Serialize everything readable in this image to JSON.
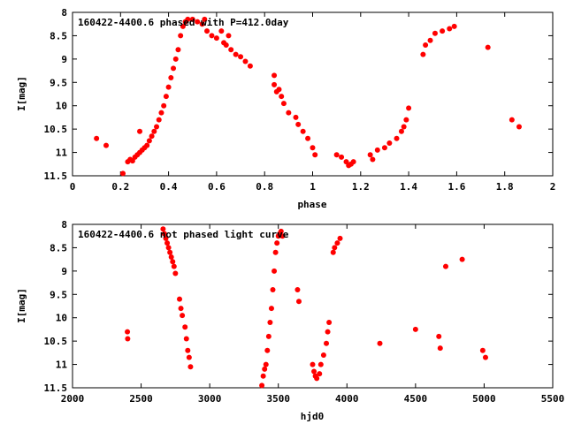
{
  "chart_data": [
    {
      "type": "scatter",
      "title": "160422-4400.6 phased with P=412.0day",
      "xlabel": "phase",
      "ylabel": "I[mag]",
      "xlim": [
        0,
        2
      ],
      "ylim": [
        11.5,
        8
      ],
      "y_inverted": true,
      "grid": false,
      "legend": "none",
      "xticks": [
        0,
        0.2,
        0.4,
        0.6,
        0.8,
        1,
        1.2,
        1.4,
        1.6,
        1.8,
        2
      ],
      "yticks": [
        8,
        8.5,
        9,
        9.5,
        10,
        10.5,
        11,
        11.5
      ],
      "xtick_labels": [
        "0",
        "0.2",
        "0.4",
        "0.6",
        "0.8",
        "1",
        "1.2",
        "1.4",
        "1.6",
        "1.8",
        "2"
      ],
      "ytick_labels": [
        "8",
        "8.5",
        "9",
        "9.5",
        "10",
        "10.5",
        "11",
        "11.5"
      ],
      "marker_color": "#ff0000",
      "series": [
        {
          "points": [
            [
              0.1,
              10.7
            ],
            [
              0.14,
              10.85
            ],
            [
              0.21,
              11.45
            ],
            [
              0.23,
              11.2
            ],
            [
              0.24,
              11.15
            ],
            [
              0.25,
              11.18
            ],
            [
              0.26,
              11.1
            ],
            [
              0.27,
              11.05
            ],
            [
              0.28,
              11.0
            ],
            [
              0.29,
              10.95
            ],
            [
              0.3,
              10.9
            ],
            [
              0.31,
              10.85
            ],
            [
              0.28,
              10.55
            ],
            [
              0.32,
              10.75
            ],
            [
              0.33,
              10.65
            ],
            [
              0.34,
              10.55
            ],
            [
              0.35,
              10.45
            ],
            [
              0.36,
              10.3
            ],
            [
              0.37,
              10.15
            ],
            [
              0.38,
              10.0
            ],
            [
              0.39,
              9.8
            ],
            [
              0.4,
              9.6
            ],
            [
              0.41,
              9.4
            ],
            [
              0.42,
              9.2
            ],
            [
              0.43,
              9.0
            ],
            [
              0.44,
              8.8
            ],
            [
              0.45,
              8.5
            ],
            [
              0.46,
              8.3
            ],
            [
              0.47,
              8.2
            ],
            [
              0.48,
              8.15
            ],
            [
              0.5,
              8.15
            ],
            [
              0.52,
              8.2
            ],
            [
              0.54,
              8.25
            ],
            [
              0.55,
              8.15
            ],
            [
              0.56,
              8.4
            ],
            [
              0.58,
              8.5
            ],
            [
              0.6,
              8.55
            ],
            [
              0.62,
              8.4
            ],
            [
              0.63,
              8.65
            ],
            [
              0.64,
              8.7
            ],
            [
              0.65,
              8.5
            ],
            [
              0.66,
              8.8
            ],
            [
              0.68,
              8.9
            ],
            [
              0.7,
              8.95
            ],
            [
              0.72,
              9.05
            ],
            [
              0.74,
              9.15
            ],
            [
              0.84,
              9.35
            ],
            [
              0.84,
              9.55
            ],
            [
              0.85,
              9.7
            ],
            [
              0.86,
              9.65
            ],
            [
              0.87,
              9.8
            ],
            [
              0.88,
              9.95
            ],
            [
              0.9,
              10.15
            ],
            [
              0.93,
              10.25
            ],
            [
              0.94,
              10.4
            ],
            [
              0.96,
              10.55
            ],
            [
              0.98,
              10.7
            ],
            [
              1.0,
              10.9
            ],
            [
              1.01,
              11.05
            ],
            [
              1.1,
              11.05
            ],
            [
              1.12,
              11.1
            ],
            [
              1.14,
              11.2
            ],
            [
              1.15,
              11.28
            ],
            [
              1.16,
              11.25
            ],
            [
              1.17,
              11.2
            ],
            [
              1.24,
              11.05
            ],
            [
              1.25,
              11.15
            ],
            [
              1.27,
              10.95
            ],
            [
              1.3,
              10.9
            ],
            [
              1.32,
              10.8
            ],
            [
              1.35,
              10.7
            ],
            [
              1.37,
              10.55
            ],
            [
              1.38,
              10.45
            ],
            [
              1.39,
              10.3
            ],
            [
              1.4,
              10.05
            ],
            [
              1.46,
              8.9
            ],
            [
              1.47,
              8.7
            ],
            [
              1.49,
              8.6
            ],
            [
              1.51,
              8.45
            ],
            [
              1.54,
              8.4
            ],
            [
              1.57,
              8.35
            ],
            [
              1.59,
              8.3
            ],
            [
              1.73,
              8.75
            ],
            [
              1.83,
              10.3
            ],
            [
              1.86,
              10.45
            ]
          ]
        }
      ]
    },
    {
      "type": "scatter",
      "title": "160422-4400.6 not phased light curve",
      "xlabel": "hjd0",
      "ylabel": "I[mag]",
      "xlim": [
        2000,
        5500
      ],
      "ylim": [
        11.5,
        8
      ],
      "y_inverted": true,
      "grid": false,
      "legend": "none",
      "xticks": [
        2000,
        2500,
        3000,
        3500,
        4000,
        4500,
        5000,
        5500
      ],
      "yticks": [
        8,
        8.5,
        9,
        9.5,
        10,
        10.5,
        11,
        11.5
      ],
      "xtick_labels": [
        "2000",
        "2500",
        "3000",
        "3500",
        "4000",
        "4500",
        "5000",
        "5500"
      ],
      "ytick_labels": [
        "8",
        "8.5",
        "9",
        "9.5",
        "10",
        "10.5",
        "11",
        "11.5"
      ],
      "marker_color": "#ff0000",
      "series": [
        {
          "points": [
            [
              2400,
              10.3
            ],
            [
              2402,
              10.45
            ],
            [
              2660,
              8.1
            ],
            [
              2670,
              8.2
            ],
            [
              2680,
              8.3
            ],
            [
              2690,
              8.4
            ],
            [
              2700,
              8.5
            ],
            [
              2710,
              8.6
            ],
            [
              2720,
              8.7
            ],
            [
              2730,
              8.8
            ],
            [
              2740,
              8.9
            ],
            [
              2750,
              9.05
            ],
            [
              2780,
              9.6
            ],
            [
              2790,
              9.8
            ],
            [
              2800,
              9.95
            ],
            [
              2820,
              10.2
            ],
            [
              2830,
              10.45
            ],
            [
              2840,
              10.7
            ],
            [
              2850,
              10.85
            ],
            [
              2860,
              11.05
            ],
            [
              3380,
              11.45
            ],
            [
              3390,
              11.25
            ],
            [
              3400,
              11.1
            ],
            [
              3410,
              11.0
            ],
            [
              3420,
              10.7
            ],
            [
              3430,
              10.4
            ],
            [
              3440,
              10.1
            ],
            [
              3450,
              9.8
            ],
            [
              3460,
              9.4
            ],
            [
              3470,
              9.0
            ],
            [
              3480,
              8.6
            ],
            [
              3490,
              8.4
            ],
            [
              3500,
              8.25
            ],
            [
              3510,
              8.2
            ],
            [
              3520,
              8.15
            ],
            [
              3530,
              8.25
            ],
            [
              3640,
              9.4
            ],
            [
              3650,
              9.65
            ],
            [
              3750,
              11.0
            ],
            [
              3760,
              11.15
            ],
            [
              3770,
              11.25
            ],
            [
              3780,
              11.3
            ],
            [
              3800,
              11.2
            ],
            [
              3810,
              11.0
            ],
            [
              3830,
              10.8
            ],
            [
              3850,
              10.55
            ],
            [
              3860,
              10.3
            ],
            [
              3870,
              10.1
            ],
            [
              3900,
              8.6
            ],
            [
              3910,
              8.5
            ],
            [
              3930,
              8.4
            ],
            [
              3950,
              8.3
            ],
            [
              4240,
              10.55
            ],
            [
              4500,
              10.25
            ],
            [
              4670,
              10.4
            ],
            [
              4680,
              10.65
            ],
            [
              4720,
              8.9
            ],
            [
              4840,
              8.75
            ],
            [
              4990,
              10.7
            ],
            [
              5010,
              10.85
            ]
          ]
        }
      ]
    }
  ]
}
